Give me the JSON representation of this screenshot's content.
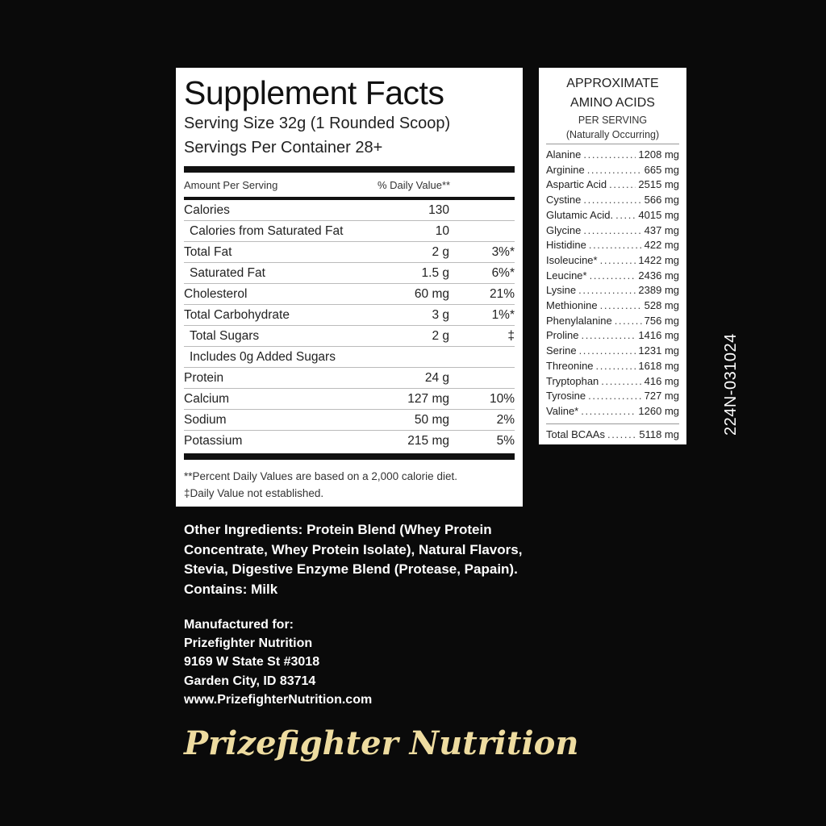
{
  "facts": {
    "title": "Supplement Facts",
    "serving_size": "Serving Size 32g (1 Rounded Scoop)",
    "servings": "Servings Per Container  28+",
    "header_amount": "Amount Per Serving",
    "header_dv": "% Daily Value**",
    "rows": [
      {
        "name": "Calories",
        "amount": "130",
        "dv": "",
        "indent": false
      },
      {
        "name": "Calories from Saturated Fat",
        "amount": "10",
        "dv": "",
        "indent": true
      },
      {
        "name": "Total Fat",
        "amount": "2 g",
        "dv": "3%*",
        "indent": false
      },
      {
        "name": "Saturated Fat",
        "amount": "1.5 g",
        "dv": "6%*",
        "indent": true
      },
      {
        "name": "Cholesterol",
        "amount": "60 mg",
        "dv": "21%",
        "indent": false
      },
      {
        "name": "Total Carbohydrate",
        "amount": "3 g",
        "dv": "1%*",
        "indent": false
      },
      {
        "name": "Total Sugars",
        "amount": "2 g",
        "dv": "‡",
        "indent": true
      },
      {
        "name": "Includes 0g Added Sugars",
        "amount": "",
        "dv": "",
        "indent": true
      },
      {
        "name": "Protein",
        "amount": "24 g",
        "dv": "",
        "indent": false
      },
      {
        "name": "Calcium",
        "amount": "127 mg",
        "dv": "10%",
        "indent": false
      },
      {
        "name": "Sodium",
        "amount": "50 mg",
        "dv": "2%",
        "indent": false
      },
      {
        "name": "Potassium",
        "amount": "215 mg",
        "dv": "5%",
        "indent": false
      }
    ],
    "footnote1": "**Percent Daily Values are based on a 2,000 calorie diet.",
    "footnote2": "‡Daily Value not established."
  },
  "amino": {
    "title1": "APPROXIMATE",
    "title2": "AMINO ACIDS",
    "sub1": "PER SERVING",
    "sub2": "(Naturally Occurring)",
    "items": [
      {
        "name": "Alanine",
        "value": "1208 mg"
      },
      {
        "name": "Arginine",
        "value": "665 mg"
      },
      {
        "name": "Aspartic Acid",
        "value": "2515 mg"
      },
      {
        "name": "Cystine",
        "value": "566 mg"
      },
      {
        "name": "Glutamic Acid.",
        "value": "4015 mg"
      },
      {
        "name": "Glycine",
        "value": "437 mg"
      },
      {
        "name": "Histidine",
        "value": "422 mg"
      },
      {
        "name": "Isoleucine*",
        "value": "1422 mg"
      },
      {
        "name": "Leucine*",
        "value": "2436 mg"
      },
      {
        "name": "Lysine",
        "value": "2389 mg"
      },
      {
        "name": "Methionine",
        "value": "528 mg"
      },
      {
        "name": "Phenylalanine",
        "value": "756 mg"
      },
      {
        "name": "Proline",
        "value": "1416 mg"
      },
      {
        "name": "Serine",
        "value": "1231 mg"
      },
      {
        "name": "Threonine",
        "value": "1618 mg"
      },
      {
        "name": "Tryptophan",
        "value": "416 mg"
      },
      {
        "name": "Tyrosine",
        "value": "727 mg"
      },
      {
        "name": "Valine*",
        "value": "1260 mg"
      }
    ],
    "total_name": "Total BCAAs",
    "total_value": "5118 mg"
  },
  "lot_code": "224N-031024",
  "ingredients": "Other Ingredients:  Protein Blend (Whey Protein Concentrate, Whey Protein Isolate), Natural Flavors, Stevia, Digestive Enzyme Blend (Protease, Papain).",
  "contains": "Contains: Milk",
  "manufacturer": {
    "label": "Manufactured for:",
    "name": "Prizefighter Nutrition",
    "street": "9169 W State St #3018",
    "city": "Garden City, ID 83714",
    "website": "www.PrizefighterNutrition.com"
  },
  "logo_text": "Prizefighter Nutrition",
  "colors": {
    "background": "#0a0a0a",
    "logo_gold": "#eedca0",
    "panel": "#ffffff"
  }
}
